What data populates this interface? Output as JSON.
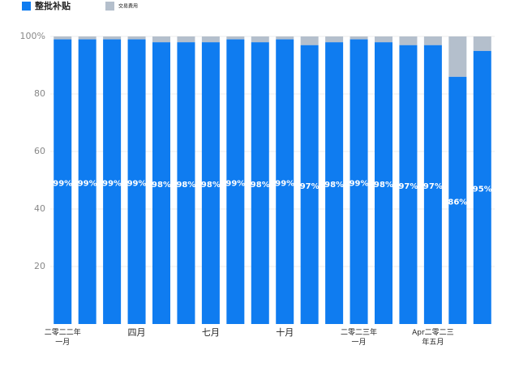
{
  "chart_data": {
    "type": "stacked_bar",
    "categories": [
      "二零二二年一月",
      null,
      null,
      "四月",
      null,
      null,
      "七月",
      null,
      null,
      "十月",
      null,
      null,
      "二零二三年一月",
      null,
      null,
      "Apr二零二三年五月",
      null,
      null
    ],
    "series": [
      {
        "name": "整批补贴",
        "color": "#0f7cf0",
        "values": [
          99,
          99,
          99,
          99,
          98,
          98,
          98,
          99,
          98,
          99,
          97,
          98,
          99,
          98,
          97,
          97,
          86,
          95
        ],
        "value_labels": [
          "99%",
          "99%",
          "99%",
          "99%",
          "98%",
          "98%",
          "98%",
          "99%",
          "98%",
          "99%",
          "97%",
          "98%",
          "99%",
          "98%",
          "97%",
          "97%",
          "86%",
          "95%"
        ]
      },
      {
        "name": "交易费用",
        "color": "#b4bfcc",
        "values": [
          1,
          1,
          1,
          1,
          2,
          2,
          2,
          1,
          2,
          1,
          3,
          2,
          1,
          2,
          3,
          3,
          14,
          5
        ]
      }
    ],
    "ylim": [
      0,
      100
    ],
    "yticks": [
      20,
      40,
      60,
      80,
      {
        "value": 100,
        "label": "100%"
      }
    ],
    "grid": true
  }
}
